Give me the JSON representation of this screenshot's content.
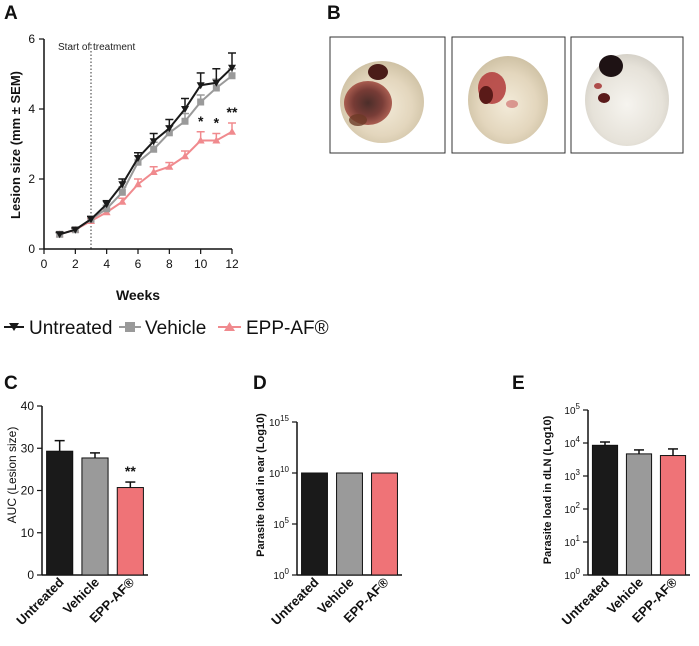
{
  "panels": {
    "A": "A",
    "B": "B",
    "C": "C",
    "D": "D",
    "E": "E"
  },
  "legend": {
    "untreated": "Untreated",
    "vehicle": "Vehicle",
    "epp": "EPP-AF®"
  },
  "colors": {
    "untreated": "#1a1a1a",
    "vehicle": "#9a9a9a",
    "epp": "#f08a8e",
    "epp_bar": "#ef7377",
    "photo_border": "#333333"
  },
  "photos": {
    "count": 3
  },
  "chart_data": [
    {
      "id": "A",
      "type": "line",
      "xlabel": "Weeks",
      "ylabel": "Lesion size (mm ± SEM)",
      "xlim": [
        0,
        12
      ],
      "ylim": [
        0,
        6
      ],
      "xticks": [
        0,
        2,
        4,
        6,
        8,
        10,
        12
      ],
      "yticks": [
        0,
        2,
        4,
        6
      ],
      "annotation": {
        "text": "Start of treatment",
        "x": 3
      },
      "significance": [
        {
          "x": 10,
          "label": "*"
        },
        {
          "x": 11,
          "label": "*"
        },
        {
          "x": 12,
          "label": "**"
        }
      ],
      "series": [
        {
          "name": "Untreated",
          "key": "untreated",
          "marker": "triangle-down",
          "x": [
            1,
            2,
            3,
            4,
            5,
            6,
            7,
            8,
            9,
            10,
            11,
            12
          ],
          "y": [
            0.42,
            0.55,
            0.85,
            1.28,
            1.85,
            2.6,
            3.08,
            3.45,
            4.0,
            4.68,
            4.75,
            5.18
          ],
          "err": [
            0.05,
            0.05,
            0.08,
            0.1,
            0.15,
            0.15,
            0.22,
            0.25,
            0.3,
            0.35,
            0.4,
            0.42
          ]
        },
        {
          "name": "Vehicle",
          "key": "vehicle",
          "marker": "square",
          "x": [
            1,
            2,
            3,
            4,
            5,
            6,
            7,
            8,
            9,
            10,
            11,
            12
          ],
          "y": [
            0.42,
            0.55,
            0.85,
            1.15,
            1.62,
            2.48,
            2.85,
            3.32,
            3.65,
            4.2,
            4.6,
            4.95
          ],
          "err": [
            0.05,
            0.05,
            0.08,
            0.1,
            0.15,
            0.18,
            0.2,
            0.2,
            0.22,
            0.2,
            0.25,
            0.2
          ]
        },
        {
          "name": "EPP-AF®",
          "key": "epp",
          "marker": "triangle-up",
          "x": [
            1,
            2,
            3,
            4,
            5,
            6,
            7,
            8,
            9,
            10,
            11,
            12
          ],
          "y": [
            0.42,
            0.55,
            0.8,
            1.05,
            1.35,
            1.85,
            2.2,
            2.35,
            2.65,
            3.1,
            3.1,
            3.35
          ],
          "err": [
            0.05,
            0.05,
            0.07,
            0.08,
            0.1,
            0.15,
            0.15,
            0.12,
            0.15,
            0.25,
            0.2,
            0.25
          ]
        }
      ]
    },
    {
      "id": "C",
      "type": "bar",
      "ylabel": "AUC (Lesion size)",
      "ylim": [
        0,
        40
      ],
      "yticks": [
        0,
        10,
        20,
        30,
        40
      ],
      "categories": [
        "Untreated",
        "Vehicle",
        "EPP-AF®"
      ],
      "values": [
        29.3,
        27.7,
        20.7
      ],
      "errors": [
        2.5,
        1.2,
        1.3
      ],
      "significance": [
        {
          "index": 2,
          "label": "**"
        }
      ]
    },
    {
      "id": "D",
      "type": "bar",
      "scale": "log10",
      "ylabel": "Parasite load in ear (Log10)",
      "ylim_exp": [
        0,
        15
      ],
      "ytick_exps": [
        0,
        5,
        10,
        15
      ],
      "tick_base": "10",
      "categories": [
        "Untreated",
        "Vehicle",
        "EPP-AF®"
      ],
      "values_log10": [
        10,
        10,
        10
      ],
      "errors_log10": [
        0,
        0,
        0
      ]
    },
    {
      "id": "E",
      "type": "bar",
      "scale": "log10",
      "ylabel": "Parasite load in dLN (Log10)",
      "ylim_exp": [
        0,
        5
      ],
      "ytick_exps": [
        0,
        1,
        2,
        3,
        4,
        5
      ],
      "tick_base": "10",
      "categories": [
        "Untreated",
        "Vehicle",
        "EPP-AF®"
      ],
      "values_log10": [
        3.93,
        3.67,
        3.62
      ],
      "errors_log10": [
        0.1,
        0.12,
        0.2
      ]
    }
  ]
}
